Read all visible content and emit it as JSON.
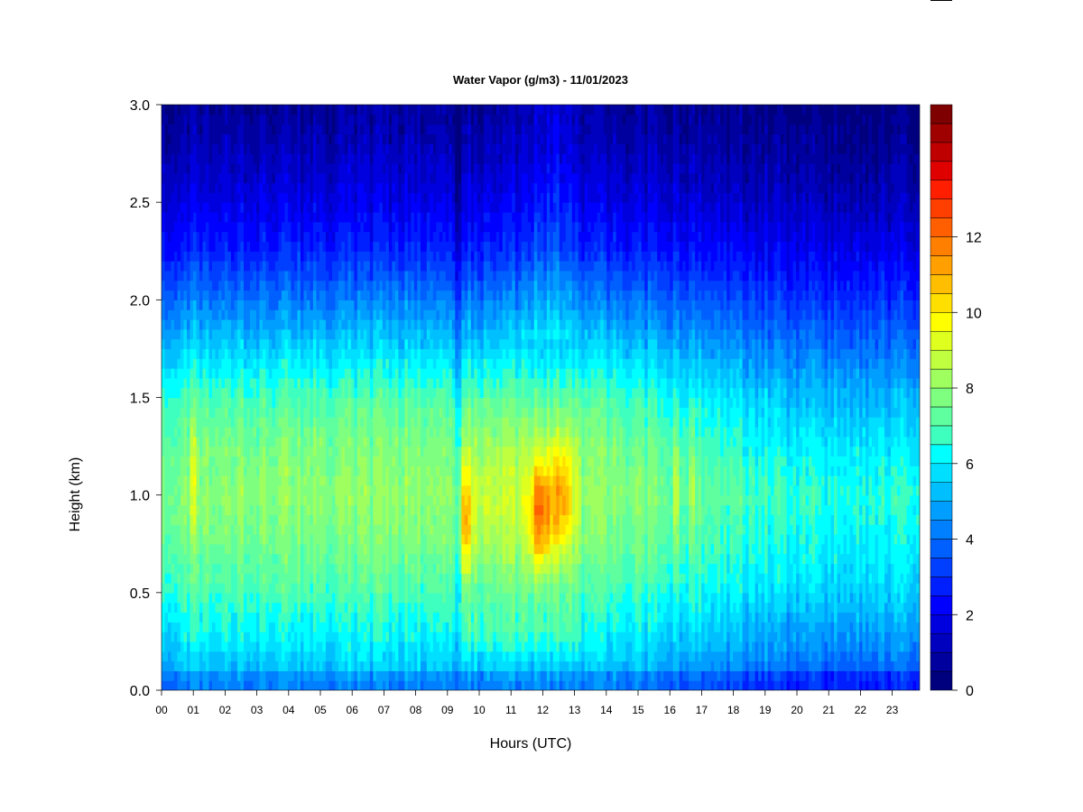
{
  "chart_data": {
    "type": "heatmap",
    "title": "Water Vapor (g/m3) - 11/01/2023",
    "xlabel": "Hours (UTC)",
    "ylabel": "Height (km)",
    "xlim": [
      0,
      24
    ],
    "ylim": [
      0.0,
      3.0
    ],
    "x_ticks": [
      "00",
      "01",
      "02",
      "03",
      "04",
      "05",
      "06",
      "07",
      "08",
      "09",
      "10",
      "11",
      "12",
      "13",
      "14",
      "15",
      "16",
      "17",
      "18",
      "19",
      "20",
      "21",
      "22",
      "23"
    ],
    "y_ticks": [
      "0.0",
      "0.5",
      "1.0",
      "1.5",
      "2.0",
      "2.5",
      "3.0"
    ],
    "colorbar": {
      "min": 0,
      "max": 12.5,
      "step": 0.5,
      "tick_labels": [
        "0",
        "2",
        "4",
        "6",
        "8",
        "10",
        "12"
      ],
      "colors": [
        "#00007f",
        "#00009f",
        "#0000bf",
        "#0000df",
        "#0000ff",
        "#001fff",
        "#003fff",
        "#005fff",
        "#007fff",
        "#009fff",
        "#00bfff",
        "#00dfff",
        "#00ffff",
        "#3fffbf",
        "#5fff9f",
        "#7fff7f",
        "#9fff5f",
        "#bfff3f",
        "#dfff1f",
        "#ffff00",
        "#ffdf00",
        "#ffbf00",
        "#ff9f00",
        "#ff7f00"
      ]
    },
    "extra_colors": [
      "#ff5f00",
      "#ff3f00",
      "#ff1f00",
      "#df0000",
      "#bf0000",
      "#9f0000",
      "#7f0000"
    ],
    "heights_km": [
      0.0,
      0.25,
      0.5,
      0.75,
      1.0,
      1.25,
      1.5,
      1.75,
      2.0,
      2.25,
      2.5,
      2.75,
      3.0
    ],
    "background_profile_g_m3": [
      4.8,
      6.0,
      6.9,
      7.6,
      8.0,
      7.7,
      7.0,
      5.6,
      4.2,
      2.8,
      1.9,
      1.2,
      0.7
    ],
    "late_day_profile_g_m3": [
      3.2,
      4.6,
      5.6,
      6.2,
      6.6,
      6.0,
      5.2,
      4.1,
      3.0,
      2.0,
      1.2,
      0.7,
      0.3
    ],
    "moist_events": [
      {
        "hour": 9.55,
        "width_h": 0.2,
        "peak_height_km": 0.85,
        "peak_g_m3": 10.2
      },
      {
        "hour": 11.95,
        "width_h": 0.35,
        "peak_height_km": 0.9,
        "peak_g_m3": 11.3
      },
      {
        "hour": 12.6,
        "width_h": 0.3,
        "peak_height_km": 1.0,
        "peak_g_m3": 10.4
      },
      {
        "hour": 1.0,
        "width_h": 0.08,
        "peak_height_km": 1.1,
        "peak_g_m3": 9.6
      },
      {
        "hour": 16.2,
        "width_h": 0.08,
        "peak_height_km": 1.0,
        "peak_g_m3": 9.4
      },
      {
        "hour": 16.7,
        "width_h": 0.08,
        "peak_height_km": 1.05,
        "peak_g_m3": 9.2
      }
    ],
    "dry_column_hour": 9.35,
    "data_end_hour": 23.85
  }
}
